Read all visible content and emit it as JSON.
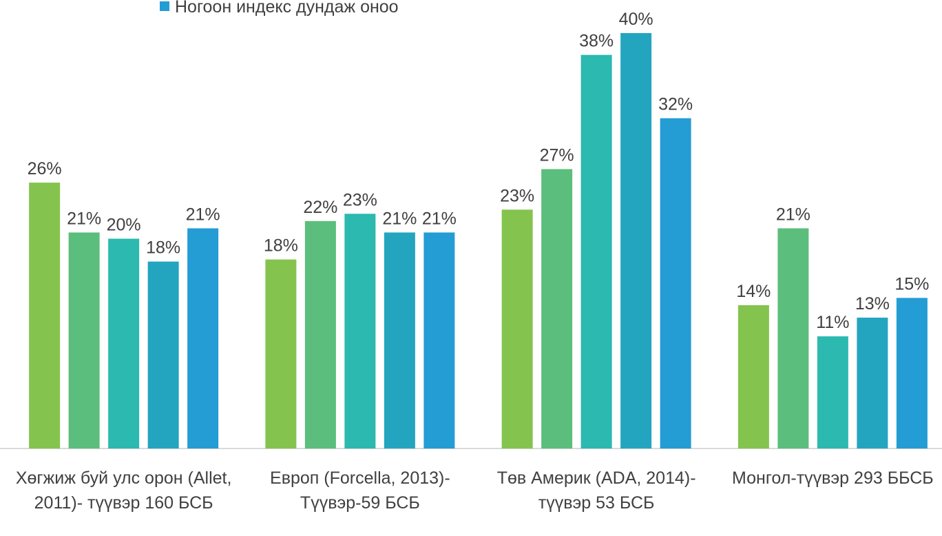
{
  "chart_data": {
    "type": "bar",
    "categories": [
      "Хөгжиж буй улс орон (Allet, 2011)- түүвэр 160 БСБ",
      "Европ (Forcella, 2013)-Түүвэр-59 БСБ",
      "Төв Америк (ADA, 2014)-түүвэр 53 БСБ",
      "Монгол-түүвэр 293 ББСБ"
    ],
    "series": [
      {
        "color": "#84c44e",
        "values": [
          25.6,
          18.2,
          23.0,
          13.8
        ],
        "value_labels": [
          "26%",
          "18%",
          "23%",
          "14%"
        ]
      },
      {
        "color": "#5bbe7c",
        "values": [
          20.8,
          21.9,
          26.9,
          21.2
        ],
        "value_labels": [
          "21%",
          "22%",
          "27%",
          "21%"
        ]
      },
      {
        "color": "#2bb9b0",
        "values": [
          20.2,
          22.6,
          37.9,
          10.8
        ],
        "value_labels": [
          "20%",
          "23%",
          "38%",
          "11%"
        ]
      },
      {
        "color": "#23a5c0",
        "values": [
          18.0,
          20.8,
          40.0,
          12.6
        ],
        "value_labels": [
          "18%",
          "21%",
          "40%",
          "13%"
        ]
      },
      {
        "name": "Ногоон индекс дундаж оноо",
        "color": "#249cd4",
        "values": [
          21.2,
          20.8,
          31.8,
          14.5
        ],
        "value_labels": [
          "21%",
          "21%",
          "32%",
          "15%"
        ]
      }
    ],
    "ylim": [
      0,
      40
    ]
  }
}
